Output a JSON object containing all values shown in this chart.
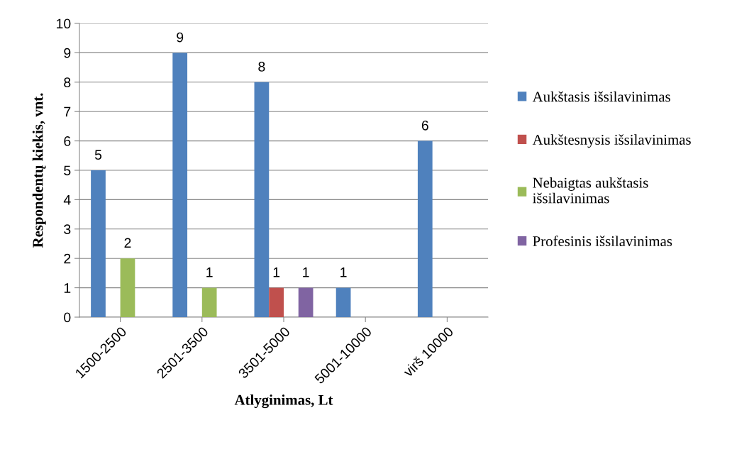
{
  "chart_data": {
    "type": "bar",
    "xlabel": "Atlyginimas, Lt",
    "ylabel": "Respondentų kiekis, vnt.",
    "categories": [
      "1500-2500",
      "2501-3500",
      "3501-5000",
      "5001-10000",
      "virš 10000"
    ],
    "series": [
      {
        "name": "Aukštasis išsilavinimas",
        "color": "#4f81bd",
        "values": [
          5,
          9,
          8,
          1,
          6
        ]
      },
      {
        "name": "Aukštesnysis išsilavinimas",
        "color": "#c0504d",
        "values": [
          null,
          null,
          1,
          null,
          null
        ]
      },
      {
        "name": "Nebaigtas aukštasis\nišsilavinimas",
        "color": "#9bbb59",
        "values": [
          2,
          1,
          null,
          null,
          null
        ]
      },
      {
        "name": "Profesinis išsilavinimas",
        "color": "#8064a2",
        "values": [
          null,
          null,
          1,
          null,
          null
        ]
      }
    ],
    "ylim": [
      0,
      10
    ],
    "yticks": [
      0,
      1,
      2,
      3,
      4,
      5,
      6,
      7,
      8,
      9,
      10
    ],
    "grid": "y",
    "legend": "right",
    "data_labels": true
  }
}
